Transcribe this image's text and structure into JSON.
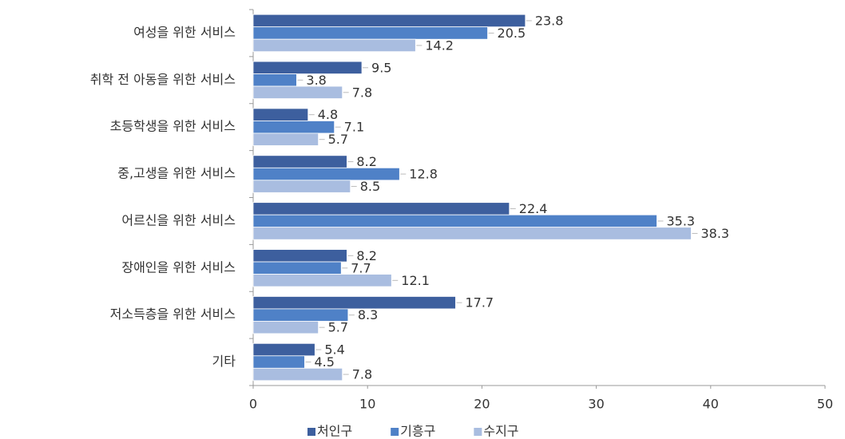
{
  "chart_data": {
    "type": "barh",
    "categories": [
      "여성을 위한 서비스",
      "취학 전 아동을 위한 서비스",
      "초등학생을 위한 서비스",
      "중,고생을 위한 서비스",
      "어르신을 위한 서비스",
      "장애인을 위한 서비스",
      "저소득층을 위한 서비스",
      "기타"
    ],
    "series": [
      {
        "name": "처인구",
        "color": "#3d5f9e",
        "values": [
          23.8,
          9.5,
          4.8,
          8.2,
          22.4,
          8.2,
          17.7,
          5.4
        ]
      },
      {
        "name": "기흥구",
        "color": "#4f81c7",
        "values": [
          20.5,
          3.8,
          7.1,
          12.8,
          35.3,
          7.7,
          8.3,
          4.5
        ]
      },
      {
        "name": "수지구",
        "color": "#a9bde0",
        "values": [
          14.2,
          7.8,
          5.7,
          8.5,
          38.3,
          12.1,
          5.7,
          7.8
        ]
      }
    ],
    "xlim": [
      0,
      50
    ],
    "xticks": [
      0,
      10,
      20,
      30,
      40,
      50
    ],
    "legend": "bottom"
  }
}
